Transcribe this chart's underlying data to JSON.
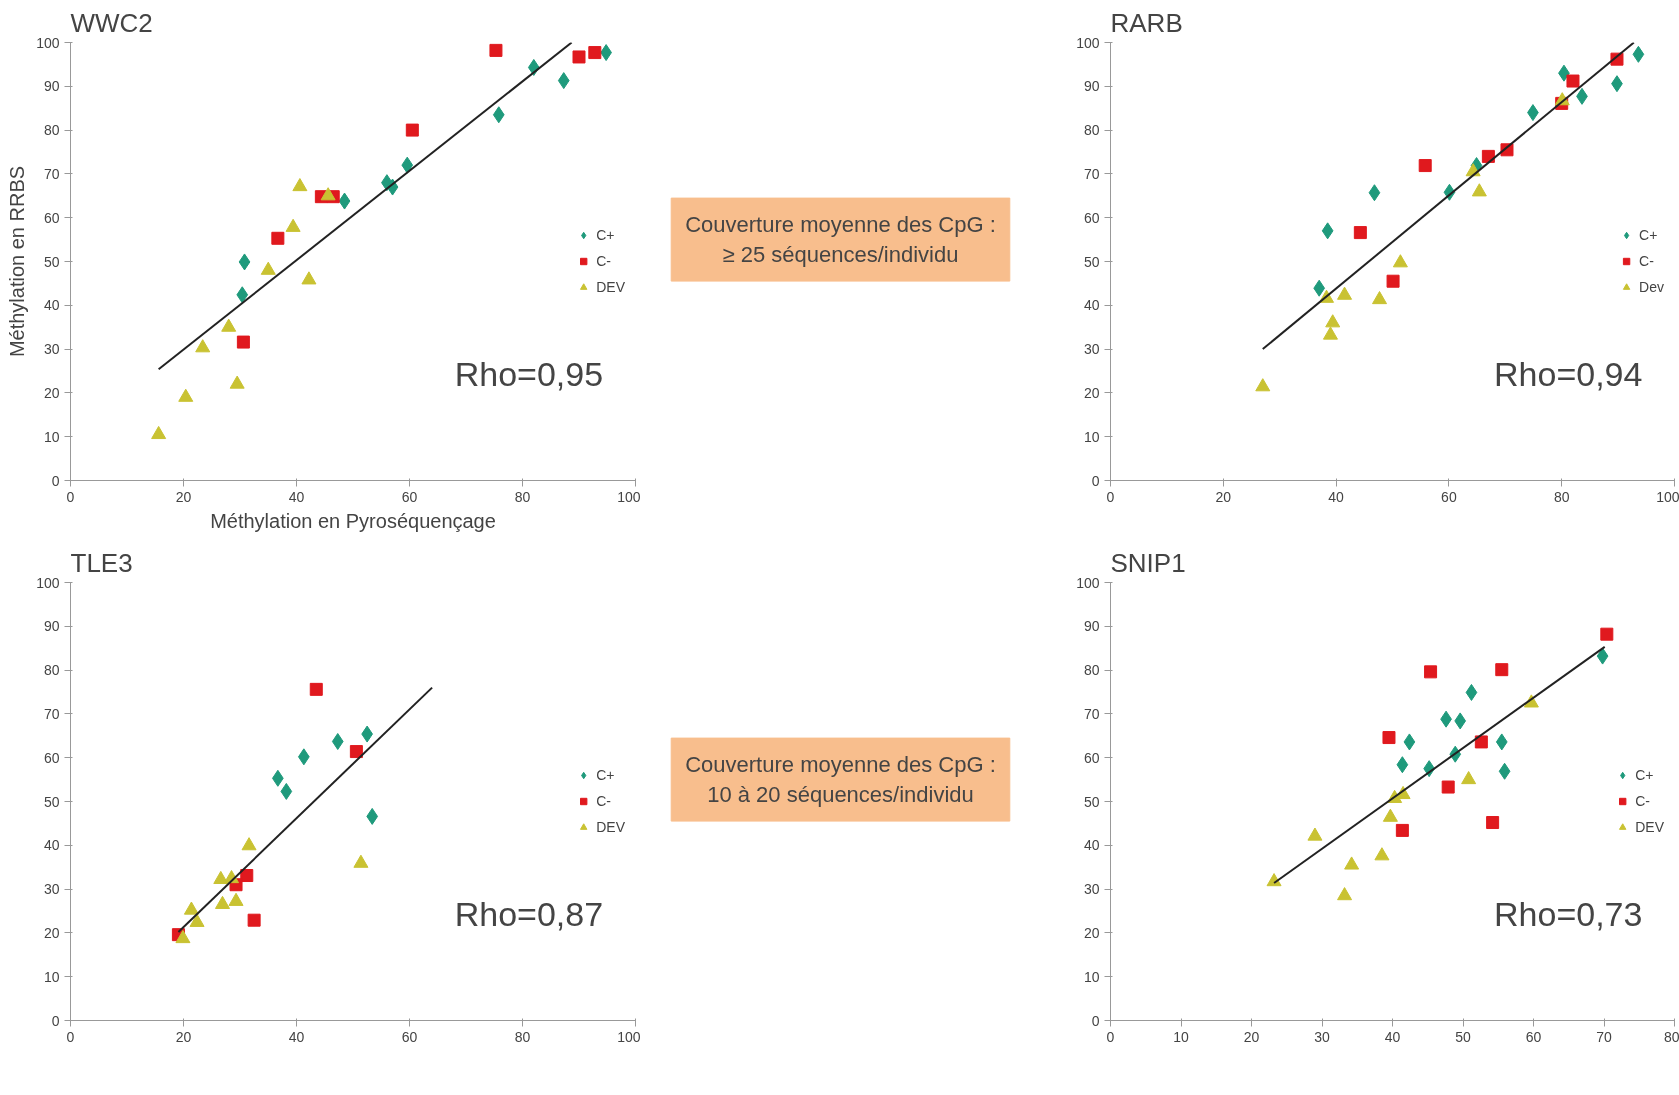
{
  "chart_data": [
    {
      "type": "scatter",
      "title": "WWC2",
      "xlabel": "Méthylation en Pyroséquençage",
      "ylabel": "Méthylation en RRBS",
      "xlim": [
        0,
        100
      ],
      "ylim": [
        0,
        100
      ],
      "xticks": [
        0,
        20,
        40,
        60,
        80,
        100
      ],
      "yticks": [
        0,
        10,
        20,
        30,
        40,
        50,
        60,
        70,
        80,
        90,
        100
      ],
      "grid": false,
      "legend": "right",
      "annotations": [
        "Rho=0,95"
      ],
      "series": [
        {
          "name": "C+",
          "color": "#1f9a7c",
          "marker": "diamond",
          "x": [
            30.4,
            30.8,
            48.5,
            56,
            57,
            59.6,
            75.8,
            82,
            87.3,
            94.8
          ],
          "values": [
            42.4,
            49.9,
            63.8,
            68,
            67,
            72,
            83.5,
            94.3,
            91.3,
            97.7
          ]
        },
        {
          "name": "C-",
          "color": "#e0191e",
          "marker": "square",
          "x": [
            36.7,
            30.6,
            44.4,
            46.5,
            60.5,
            75.3,
            90,
            92.8
          ],
          "values": [
            55.3,
            31.6,
            64.8,
            64.8,
            80,
            98.2,
            96.7,
            97.7
          ]
        },
        {
          "name": "DEV",
          "color": "#c9c232",
          "marker": "triangle",
          "x": [
            15.6,
            20.4,
            23.4,
            28,
            29.5,
            35,
            39.4,
            40.6,
            42.2,
            45.6
          ],
          "values": [
            10.5,
            19,
            30.3,
            35,
            22,
            48,
            57.8,
            67.1,
            45.8,
            65
          ]
        },
        {
          "type": "line",
          "color": "#222222",
          "marker": "none",
          "x": [
            15.6,
            88.7
          ],
          "values": [
            25.4,
            100
          ]
        }
      ]
    },
    {
      "type": "other",
      "annotations": [
        "Couverture moyenne des CpG :\n≥ 25 séquences/individu"
      ]
    },
    {
      "type": "scatter",
      "title": "RARB",
      "xlim": [
        0,
        100
      ],
      "ylim": [
        0,
        100
      ],
      "xticks": [
        0,
        20,
        40,
        60,
        80,
        100
      ],
      "yticks": [
        0,
        10,
        20,
        30,
        40,
        50,
        60,
        70,
        80,
        90,
        100
      ],
      "grid": false,
      "legend": "right",
      "annotations": [
        "Rho=0,94"
      ],
      "series": [
        {
          "name": "C+",
          "color": "#1f9a7c",
          "marker": "diamond",
          "x": [
            37,
            38.5,
            46.8,
            60.1,
            64.9,
            74.9,
            80.4,
            83.6,
            89.8,
            93.6
          ],
          "values": [
            43.9,
            57,
            65.7,
            65.8,
            71.9,
            84,
            93,
            87.7,
            90.6,
            97.3
          ]
        },
        {
          "name": "C-",
          "color": "#e0191e",
          "marker": "square",
          "x": [
            44.3,
            50.1,
            55.8,
            67,
            70.3,
            80,
            82,
            89.8
          ],
          "values": [
            56.6,
            45.5,
            71.9,
            74,
            75.5,
            86.1,
            91.2,
            96.2
          ]
        },
        {
          "name": "Dev",
          "color": "#c9c232",
          "marker": "triangle",
          "x": [
            27,
            38.3,
            39.4,
            39,
            41.5,
            47.7,
            51.4,
            64.3,
            65.4,
            80.1
          ],
          "values": [
            21.4,
            41.6,
            36,
            33.2,
            42.3,
            41.3,
            49.7,
            70.5,
            65.9,
            86.7
          ]
        },
        {
          "type": "line",
          "color": "#222222",
          "marker": "none",
          "x": [
            27,
            92.8
          ],
          "values": [
            30,
            100
          ]
        }
      ]
    },
    {
      "type": "scatter",
      "title": "TLE3",
      "xlim": [
        0,
        100
      ],
      "ylim": [
        0,
        100
      ],
      "xticks": [
        0,
        20,
        40,
        60,
        80,
        100
      ],
      "yticks": [
        0,
        10,
        20,
        30,
        40,
        50,
        60,
        70,
        80,
        90,
        100
      ],
      "grid": false,
      "legend": "right",
      "annotations": [
        "Rho=0,87"
      ],
      "series": [
        {
          "name": "C+",
          "color": "#1f9a7c",
          "marker": "diamond",
          "x": [
            36.7,
            38.2,
            41.3,
            47.3,
            52.5,
            53.4
          ],
          "values": [
            55.3,
            52.3,
            60.2,
            63.7,
            65.4,
            46.6
          ]
        },
        {
          "name": "C-",
          "color": "#e0191e",
          "marker": "square",
          "x": [
            43.5,
            50.6,
            31.2,
            29.3,
            32.5,
            19.1
          ],
          "values": [
            75.6,
            61.4,
            33.1,
            31,
            22.9,
            19.6
          ]
        },
        {
          "name": "DEV",
          "color": "#c9c232",
          "marker": "triangle",
          "x": [
            19.9,
            21.4,
            22.4,
            26.6,
            28.5,
            26.9,
            29.3,
            31.6,
            51.4
          ],
          "values": [
            18.7,
            25.2,
            22.4,
            32.2,
            32.4,
            26.5,
            27.2,
            39.9,
            35.9
          ]
        },
        {
          "type": "line",
          "color": "#222222",
          "marker": "none",
          "x": [
            19.1,
            64
          ],
          "values": [
            20.2,
            76
          ]
        }
      ]
    },
    {
      "type": "other",
      "annotations": [
        "Couverture moyenne des CpG :\n10 à 20 séquences/individu"
      ]
    },
    {
      "type": "scatter",
      "title": "SNIP1",
      "xlim": [
        0,
        80
      ],
      "ylim": [
        0,
        100
      ],
      "xticks": [
        0,
        10,
        20,
        30,
        40,
        50,
        60,
        70,
        80
      ],
      "yticks": [
        0,
        10,
        20,
        30,
        40,
        50,
        60,
        70,
        80,
        90,
        100
      ],
      "grid": false,
      "legend": "right",
      "annotations": [
        "Rho=0,73"
      ],
      "series": [
        {
          "name": "C+",
          "color": "#1f9a7c",
          "marker": "diamond",
          "x": [
            41.4,
            42.4,
            45.2,
            47.6,
            49.6,
            48.9,
            51.2,
            55.5,
            55.9,
            69.8
          ],
          "values": [
            58.4,
            63.6,
            57.5,
            68.8,
            68.4,
            60.8,
            74.9,
            63.6,
            56.9,
            83.2
          ]
        },
        {
          "name": "C-",
          "color": "#e0191e",
          "marker": "square",
          "x": [
            39.5,
            45.4,
            41.4,
            47.9,
            52.6,
            55.5,
            54.2,
            70.4
          ],
          "values": [
            64.6,
            79.6,
            43.4,
            53.3,
            63.6,
            80.1,
            45.2,
            88.2
          ]
        },
        {
          "name": "DEV",
          "color": "#c9c232",
          "marker": "triangle",
          "x": [
            23.2,
            29,
            33.2,
            34.2,
            38.5,
            39.7,
            40.3,
            41.5,
            50.8,
            59.7
          ],
          "values": [
            31.7,
            42.1,
            28.5,
            35.5,
            37.6,
            46.4,
            50.7,
            51.6,
            55,
            72.5
          ]
        },
        {
          "type": "line",
          "color": "#222222",
          "marker": "none",
          "x": [
            23.2,
            70.1
          ],
          "values": [
            31.4,
            85.3
          ]
        }
      ]
    }
  ]
}
